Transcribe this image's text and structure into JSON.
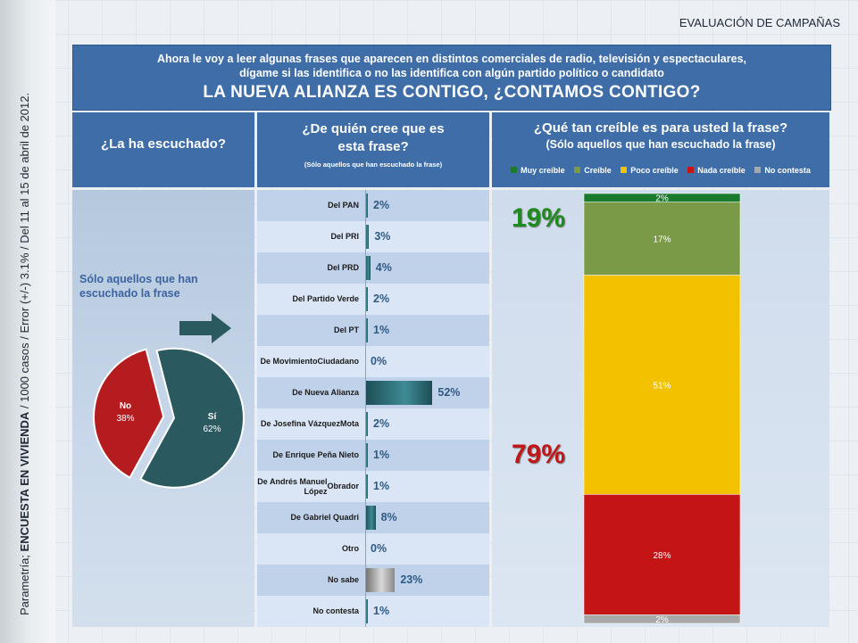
{
  "side_caption": {
    "prefix": "Parametría; ",
    "bold": "ENCUESTA EN VIVIENDA",
    "suffix": " / 1000 casos / Error (+/-) 3.1% / Del 11 al 15 de abril de 2012."
  },
  "section_title": "EVALUACIÓN DE CAMPAÑAS",
  "header": {
    "line1": "Ahora le voy a leer algunas frases que aparecen en distintos comerciales de radio, televisión y espectaculares,",
    "line2": "dígame si las identifica o no las identifica con algún partido político o candidato",
    "phrase": "LA NUEVA ALIANZA ES CONTIGO, ¿CONTAMOS CONTIGO?"
  },
  "col1": {
    "title": "¿La ha escuchado?",
    "note": "Sólo aquellos que han escuchado la frase"
  },
  "col2": {
    "title_l1": "¿De quién cree que es",
    "title_l2": "esta frase?",
    "note": "(Sólo aquellos que han escuchado la frase)"
  },
  "col3": {
    "title": "¿Qué tan creíble es para usted la frase?",
    "note": "(Sólo aquellos que han escuchado la frase)"
  },
  "colors": {
    "muy": "#1a7a2e",
    "creible": "#7a9a48",
    "poco": "#f2c200",
    "nada": "#c41416",
    "nc": "#a8a8a8",
    "pie_yes": "#2a5a60",
    "pie_no": "#b51c20"
  },
  "chart_data": [
    {
      "type": "pie",
      "title": "¿La ha escuchado?",
      "slices": [
        {
          "label": "Sí",
          "value": 62,
          "text": "62%"
        },
        {
          "label": "No",
          "value": 38,
          "text": "38%"
        }
      ]
    },
    {
      "type": "bar",
      "title": "¿De quién cree que es esta frase?",
      "categories": [
        "Del PAN",
        "Del PRI",
        "Del PRD",
        "Del Partido Verde",
        "Del PT",
        "De Movimiento Ciudadano",
        "De Nueva Alianza",
        "De Josefina Vázquez Mota",
        "De Enrique Peña Nieto",
        "De Andrés Manuel López Obrador",
        "De Gabriel Quadri",
        "Otro",
        "No sabe",
        "No contesta"
      ],
      "label_lines": [
        [
          "Del PAN"
        ],
        [
          "Del PRI"
        ],
        [
          "Del PRD"
        ],
        [
          "Del Partido Verde"
        ],
        [
          "Del PT"
        ],
        [
          "De Movimiento",
          "Ciudadano"
        ],
        [
          "De Nueva Alianza"
        ],
        [
          "De Josefina Vázquez",
          "Mota"
        ],
        [
          "De Enrique Peña Nieto"
        ],
        [
          "De Andrés Manuel López",
          "Obrador"
        ],
        [
          "De Gabriel Quadri"
        ],
        [
          "Otro"
        ],
        [
          "No sabe"
        ],
        [
          "No contesta"
        ]
      ],
      "values": [
        2,
        3,
        4,
        2,
        1,
        0,
        52,
        2,
        1,
        1,
        8,
        0,
        23,
        1
      ],
      "value_labels": [
        "2%",
        "3%",
        "4%",
        "2%",
        "1%",
        "0%",
        "52%",
        "2%",
        "1%",
        "1%",
        "8%",
        "0%",
        "23%",
        "1%"
      ],
      "gray_categories": [
        "No sabe"
      ]
    },
    {
      "type": "bar",
      "stacked": true,
      "title": "¿Qué tan creíble es para usted la frase?",
      "legend": [
        "Muy creíble",
        "Creíble",
        "Poco creíble",
        "Nada creíble",
        "No contesta"
      ],
      "values": [
        2,
        17,
        51,
        28,
        2
      ],
      "value_labels": [
        "2%",
        "17%",
        "51%",
        "28%",
        "2%"
      ],
      "summary": [
        {
          "text": "19%",
          "segments": [
            "Muy creíble",
            "Creíble"
          ]
        },
        {
          "text": "79%",
          "segments": [
            "Poco creíble",
            "Nada creíble"
          ]
        }
      ]
    }
  ]
}
